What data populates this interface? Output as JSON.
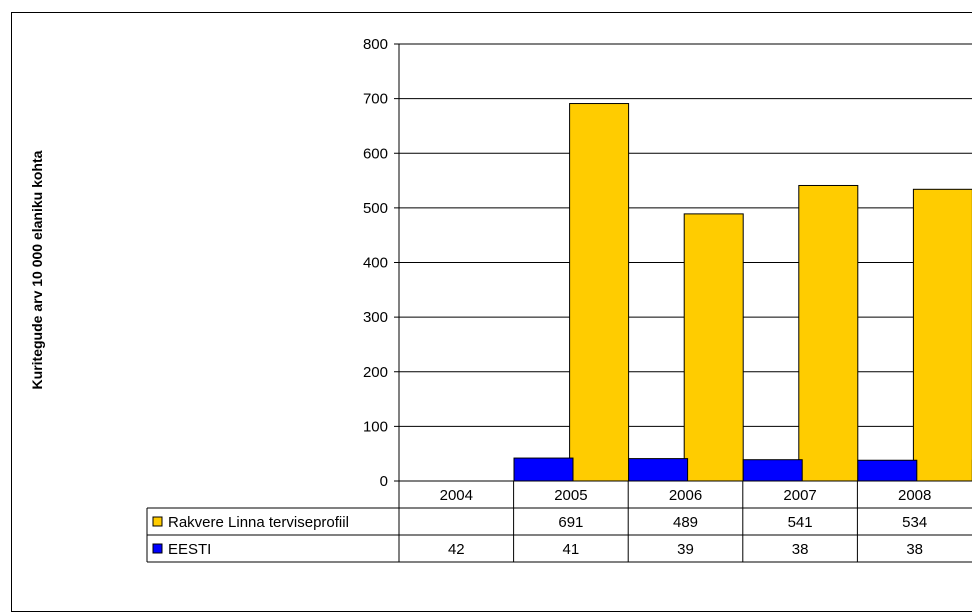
{
  "chart_data": {
    "type": "bar",
    "title": "",
    "xlabel": "",
    "ylabel": "Kuritegude arv 10 000 elaniku kohta",
    "categories": [
      "2004",
      "2005",
      "2006",
      "2007",
      "2008"
    ],
    "ylim": [
      0,
      800
    ],
    "yticks": [
      0,
      100,
      200,
      300,
      400,
      500,
      600,
      700,
      800
    ],
    "grid": true,
    "legend": "data-table-left",
    "series": [
      {
        "name": "Rakvere Linna terviseprofiil",
        "color": "#ffcc00",
        "values": [
          null,
          691,
          489,
          541,
          534
        ],
        "labels": [
          "",
          "691",
          "489",
          "541",
          "534"
        ]
      },
      {
        "name": "EESTI",
        "color": "#0000ff",
        "values": [
          42,
          41,
          39,
          38,
          38
        ],
        "labels": [
          "42",
          "41",
          "39",
          "38",
          "38"
        ]
      }
    ]
  }
}
